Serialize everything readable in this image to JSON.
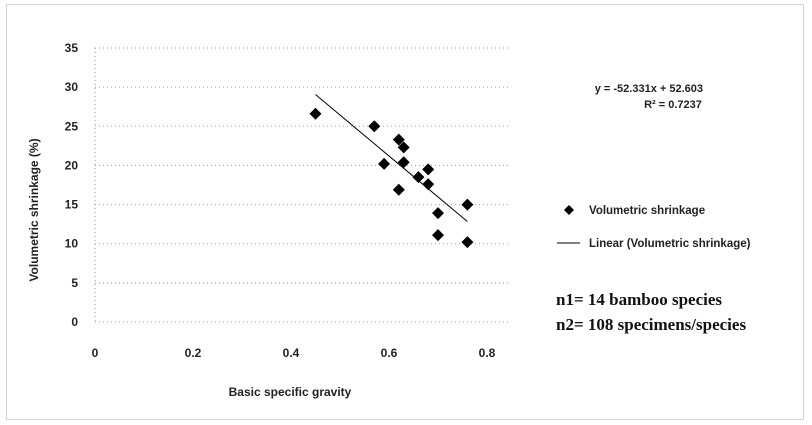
{
  "chart_data": {
    "type": "scatter",
    "xlabel": "Basic specific gravity",
    "ylabel": "Volumetric shrinkage (%)",
    "xlim": [
      0,
      0.8
    ],
    "ylim": [
      0,
      35
    ],
    "x_ticks": [
      "0",
      "0.2",
      "0.4",
      "0.6",
      "0.8"
    ],
    "y_ticks": [
      "0",
      "5",
      "10",
      "15",
      "20",
      "25",
      "30",
      "35"
    ],
    "x_tick_values": [
      0,
      0.2,
      0.4,
      0.6,
      0.8
    ],
    "y_tick_values": [
      0,
      5,
      10,
      15,
      20,
      25,
      30,
      35
    ],
    "grid": true,
    "legend_position": "right",
    "series": [
      {
        "name": "Volumetric shrinkage",
        "marker": "diamond",
        "color": "#000000",
        "points": [
          {
            "x": 0.45,
            "y": 26.6
          },
          {
            "x": 0.57,
            "y": 25.0
          },
          {
            "x": 0.59,
            "y": 20.2
          },
          {
            "x": 0.62,
            "y": 23.3
          },
          {
            "x": 0.63,
            "y": 22.3
          },
          {
            "x": 0.63,
            "y": 20.4
          },
          {
            "x": 0.62,
            "y": 16.9
          },
          {
            "x": 0.66,
            "y": 18.5
          },
          {
            "x": 0.68,
            "y": 19.5
          },
          {
            "x": 0.68,
            "y": 17.6
          },
          {
            "x": 0.7,
            "y": 13.9
          },
          {
            "x": 0.7,
            "y": 11.1
          },
          {
            "x": 0.76,
            "y": 15.0
          },
          {
            "x": 0.76,
            "y": 10.2
          }
        ]
      },
      {
        "name": "Linear (Volumetric shrinkage)",
        "type": "trendline",
        "color": "#000000",
        "slope": -52.331,
        "intercept": 52.603,
        "x_range": [
          0.45,
          0.76
        ]
      }
    ],
    "annotations": {
      "equation": "y = -52.331x + 52.603",
      "r_squared": "R² = 0.7237",
      "note_line1": "n1= 14 bamboo species",
      "note_line2": "n2= 108 specimens/species"
    }
  }
}
